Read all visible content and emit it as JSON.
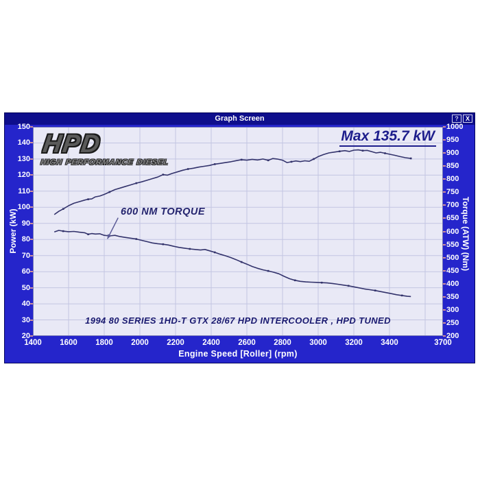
{
  "window": {
    "title": "Graph Screen",
    "help_button": "?",
    "close_button": "X"
  },
  "logo": {
    "main": "HPD",
    "subtitle": "HIGH PERFORMANCE DIESEL"
  },
  "annotations": {
    "max_power": "Max 135.7 kW",
    "torque_callout": "600 NM TORQUE",
    "caption": "1994 80 SERIES 1HD-T GTX 28/67 HPD INTERCOOLER , HPD TUNED"
  },
  "chart_data": {
    "type": "line",
    "xlabel": "Engine Speed [Roller] (rpm)",
    "ylabel_left": "Power (kW)",
    "ylabel_right": "Torque (ATW) (Nm)",
    "xlim": [
      1400,
      3700
    ],
    "ylim_left": [
      20,
      150
    ],
    "ylim_right": [
      200,
      1000
    ],
    "x_ticks": [
      1400,
      1600,
      1800,
      2000,
      2200,
      2400,
      2600,
      2800,
      3000,
      3200,
      3400,
      3700
    ],
    "y_ticks_left": [
      150,
      140,
      130,
      120,
      110,
      100,
      90,
      80,
      70,
      60,
      50,
      40,
      30,
      20
    ],
    "y_ticks_right": [
      1000,
      950,
      900,
      850,
      800,
      750,
      700,
      650,
      600,
      550,
      500,
      450,
      400,
      350,
      300,
      250,
      200
    ],
    "x_gridlines": [
      1600,
      1800,
      2000,
      2200,
      2400,
      2600,
      2800,
      3000,
      3200,
      3400,
      3600
    ],
    "y_gridlines_left_scale": [
      30,
      40,
      50,
      60,
      70,
      80,
      90,
      100,
      110,
      120,
      130,
      140
    ],
    "grid": true,
    "legend": "none",
    "max_power_kw": 135.7,
    "colors": {
      "curve": "#32326b",
      "grid": "#c3c5e2",
      "plot_bg": "#e9e9f6",
      "window_bg": "#2525cb",
      "titlebar_bg": "#0e0e8c",
      "axis_text": "#ffffff",
      "annotation_text": "#1d1d8c",
      "tick_mark": "#cf8f9a",
      "plot_border": "#7a7cb8",
      "arrow": "#5a5a96"
    },
    "series": [
      {
        "name": "Power",
        "axis": "left",
        "unit": "kW",
        "points": [
          [
            1520,
            95.5
          ],
          [
            1545,
            97.5
          ],
          [
            1570,
            99
          ],
          [
            1600,
            101
          ],
          [
            1630,
            102.5
          ],
          [
            1660,
            103.5
          ],
          [
            1690,
            104.5
          ],
          [
            1710,
            105
          ],
          [
            1730,
            105.2
          ],
          [
            1750,
            106.5
          ],
          [
            1775,
            107
          ],
          [
            1800,
            108
          ],
          [
            1830,
            109.5
          ],
          [
            1860,
            111
          ],
          [
            1890,
            112
          ],
          [
            1920,
            113
          ],
          [
            1950,
            114
          ],
          [
            1980,
            115
          ],
          [
            2010,
            115.8
          ],
          [
            2040,
            116.8
          ],
          [
            2070,
            117.8
          ],
          [
            2100,
            118.8
          ],
          [
            2130,
            120.3
          ],
          [
            2155,
            120
          ],
          [
            2180,
            121
          ],
          [
            2210,
            122
          ],
          [
            2240,
            123
          ],
          [
            2270,
            123.8
          ],
          [
            2300,
            124.3
          ],
          [
            2330,
            125
          ],
          [
            2360,
            125.5
          ],
          [
            2390,
            126
          ],
          [
            2420,
            126.8
          ],
          [
            2450,
            127.3
          ],
          [
            2480,
            127.8
          ],
          [
            2510,
            128.3
          ],
          [
            2540,
            129
          ],
          [
            2570,
            129.6
          ],
          [
            2600,
            129.3
          ],
          [
            2630,
            129.8
          ],
          [
            2660,
            129.4
          ],
          [
            2690,
            130
          ],
          [
            2720,
            129.2
          ],
          [
            2745,
            130.3
          ],
          [
            2770,
            130
          ],
          [
            2800,
            129.3
          ],
          [
            2825,
            127.8
          ],
          [
            2850,
            128.3
          ],
          [
            2875,
            128.8
          ],
          [
            2900,
            128.4
          ],
          [
            2925,
            128.9
          ],
          [
            2950,
            128.6
          ],
          [
            2975,
            130
          ],
          [
            3000,
            131.5
          ],
          [
            3030,
            132.8
          ],
          [
            3060,
            133.8
          ],
          [
            3090,
            134.3
          ],
          [
            3120,
            134.8
          ],
          [
            3150,
            135.2
          ],
          [
            3175,
            134.7
          ],
          [
            3200,
            135.5
          ],
          [
            3225,
            135.7
          ],
          [
            3250,
            135.2
          ],
          [
            3275,
            135.4
          ],
          [
            3300,
            134.6
          ],
          [
            3325,
            133.8
          ],
          [
            3350,
            134.2
          ],
          [
            3375,
            133.6
          ],
          [
            3400,
            133
          ],
          [
            3430,
            132.3
          ],
          [
            3460,
            131.5
          ],
          [
            3490,
            130.8
          ],
          [
            3520,
            130.4
          ]
        ]
      },
      {
        "name": "Torque",
        "axis": "right",
        "unit": "Nm",
        "points": [
          [
            1520,
            598
          ],
          [
            1545,
            604
          ],
          [
            1570,
            601
          ],
          [
            1600,
            599
          ],
          [
            1630,
            600
          ],
          [
            1660,
            597
          ],
          [
            1690,
            595
          ],
          [
            1710,
            589
          ],
          [
            1730,
            592
          ],
          [
            1750,
            590
          ],
          [
            1775,
            591
          ],
          [
            1800,
            585
          ],
          [
            1830,
            583
          ],
          [
            1860,
            585
          ],
          [
            1890,
            580
          ],
          [
            1920,
            577
          ],
          [
            1950,
            574
          ],
          [
            1980,
            571
          ],
          [
            2010,
            566
          ],
          [
            2040,
            561
          ],
          [
            2070,
            556
          ],
          [
            2100,
            553
          ],
          [
            2130,
            551
          ],
          [
            2160,
            548
          ],
          [
            2190,
            543
          ],
          [
            2220,
            539
          ],
          [
            2250,
            536
          ],
          [
            2280,
            533
          ],
          [
            2310,
            531
          ],
          [
            2340,
            529
          ],
          [
            2365,
            531
          ],
          [
            2390,
            526
          ],
          [
            2420,
            520
          ],
          [
            2450,
            513
          ],
          [
            2480,
            507
          ],
          [
            2510,
            500
          ],
          [
            2540,
            492
          ],
          [
            2570,
            483
          ],
          [
            2600,
            475
          ],
          [
            2630,
            466
          ],
          [
            2660,
            459
          ],
          [
            2690,
            453
          ],
          [
            2720,
            449
          ],
          [
            2750,
            444
          ],
          [
            2780,
            438
          ],
          [
            2810,
            428
          ],
          [
            2840,
            419
          ],
          [
            2870,
            413
          ],
          [
            2900,
            409
          ],
          [
            2930,
            407
          ],
          [
            2960,
            406
          ],
          [
            2990,
            405
          ],
          [
            3020,
            404
          ],
          [
            3050,
            403
          ],
          [
            3080,
            401
          ],
          [
            3110,
            398
          ],
          [
            3140,
            395
          ],
          [
            3170,
            392
          ],
          [
            3200,
            388
          ],
          [
            3230,
            384
          ],
          [
            3260,
            380
          ],
          [
            3290,
            377
          ],
          [
            3320,
            374
          ],
          [
            3350,
            370
          ],
          [
            3380,
            366
          ],
          [
            3410,
            362
          ],
          [
            3440,
            358
          ],
          [
            3470,
            355
          ],
          [
            3500,
            352
          ],
          [
            3520,
            351
          ]
        ]
      }
    ],
    "callout_arrow": {
      "from_x": 1878,
      "from_kw": 93.5,
      "to_x": 1818,
      "to_kw": 85.5
    }
  }
}
